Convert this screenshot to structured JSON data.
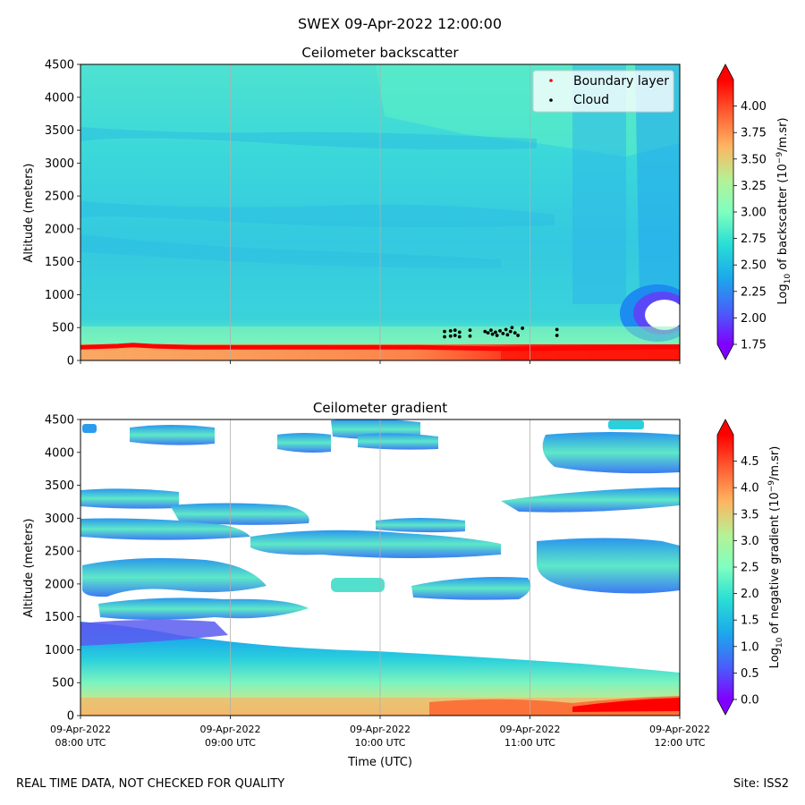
{
  "suptitle": "SWEX 09-Apr-2022 12:00:00",
  "footer": {
    "left": "REAL TIME DATA, NOT CHECKED FOR QUALITY",
    "right": "Site: ISS2"
  },
  "chart_data": [
    {
      "type": "heatmap",
      "title": "Ceilometer backscatter",
      "xlabel": "",
      "ylabel": "Altitude (meters)",
      "ylim": [
        0,
        4500
      ],
      "yticks": [
        0,
        500,
        1000,
        1500,
        2000,
        2500,
        3000,
        3500,
        4000,
        4500
      ],
      "xlim_hours": [
        8,
        12
      ],
      "grid": "vertical",
      "colorbar": {
        "label_prefix": "Log",
        "label_sub": "10",
        "label_mid": " of backscatter (10",
        "label_sup": "−9",
        "label_suffix": "/m.sr)",
        "range": [
          1.75,
          4.25
        ],
        "ticks": [
          "1.75",
          "2.00",
          "2.25",
          "2.50",
          "2.75",
          "3.00",
          "3.25",
          "3.50",
          "3.75",
          "4.00"
        ]
      },
      "legend": {
        "position": "top-right",
        "items": [
          {
            "label": "Boundary layer",
            "color": "#ff0000"
          },
          {
            "label": "Cloud",
            "color": "#000000"
          }
        ]
      },
      "boundary_layer": {
        "times_hours": [
          8.0,
          8.25,
          8.35,
          8.5,
          8.75,
          9.0,
          9.25,
          9.5,
          9.75,
          10.0,
          10.25,
          10.5,
          10.75,
          11.0,
          11.25,
          11.5,
          11.75,
          12.0
        ],
        "altitude_m": [
          200,
          220,
          235,
          215,
          200,
          200,
          200,
          200,
          200,
          200,
          200,
          190,
          180,
          180,
          185,
          190,
          200,
          200
        ]
      },
      "cloud_points": [
        [
          10.43,
          440
        ],
        [
          10.43,
          360
        ],
        [
          10.47,
          450
        ],
        [
          10.47,
          370
        ],
        [
          10.5,
          460
        ],
        [
          10.5,
          380
        ],
        [
          10.53,
          430
        ],
        [
          10.53,
          360
        ],
        [
          10.6,
          460
        ],
        [
          10.6,
          370
        ],
        [
          10.7,
          440
        ],
        [
          10.72,
          420
        ],
        [
          10.74,
          460
        ],
        [
          10.75,
          400
        ],
        [
          10.77,
          430
        ],
        [
          10.78,
          380
        ],
        [
          10.8,
          450
        ],
        [
          10.82,
          410
        ],
        [
          10.84,
          470
        ],
        [
          10.85,
          390
        ],
        [
          10.87,
          440
        ],
        [
          10.88,
          500
        ],
        [
          10.9,
          420
        ],
        [
          10.92,
          380
        ],
        [
          10.95,
          490
        ],
        [
          11.18,
          470
        ],
        [
          11.18,
          380
        ]
      ]
    },
    {
      "type": "heatmap",
      "title": "Ceilometer gradient",
      "xlabel": "Time (UTC)",
      "ylabel": "Altitude (meters)",
      "ylim": [
        0,
        4500
      ],
      "yticks": [
        0,
        500,
        1000,
        1500,
        2000,
        2500,
        3000,
        3500,
        4000,
        4500
      ],
      "xlim_hours": [
        8,
        12
      ],
      "grid": "vertical",
      "xticks": [
        {
          "line1": "09-Apr-2022",
          "line2": "08:00 UTC"
        },
        {
          "line1": "09-Apr-2022",
          "line2": "09:00 UTC"
        },
        {
          "line1": "09-Apr-2022",
          "line2": "10:00 UTC"
        },
        {
          "line1": "09-Apr-2022",
          "line2": "11:00 UTC"
        },
        {
          "line1": "09-Apr-2022",
          "line2": "12:00 UTC"
        }
      ],
      "colorbar": {
        "label_prefix": "Log",
        "label_sub": "10",
        "label_mid": " of negative gradient (10",
        "label_sup": "−9",
        "label_suffix": "/m.sr)",
        "range": [
          0.0,
          5.0
        ],
        "ticks": [
          "0.0",
          "0.5",
          "1.0",
          "1.5",
          "2.0",
          "2.5",
          "3.0",
          "3.5",
          "4.0",
          "4.5"
        ]
      }
    }
  ]
}
